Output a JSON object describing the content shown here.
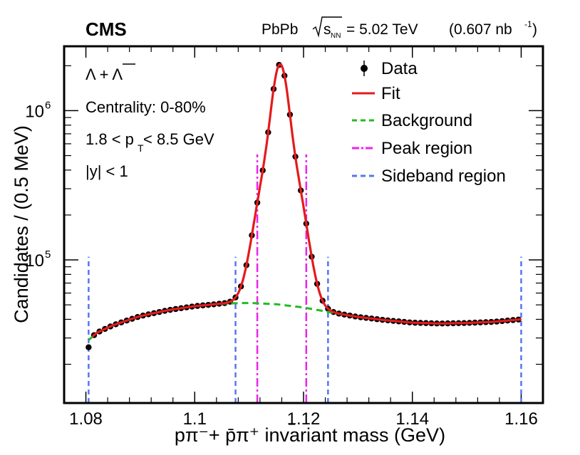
{
  "chart_data": {
    "type": "line",
    "experiment": "CMS",
    "collision": "PbPb",
    "energy_label": "= 5.02 TeV",
    "lumi_label": "(0.607 nb",
    "lumi_exp": "-1",
    "lumi_close": ")",
    "energy_symbol": "s",
    "energy_sub": "NN",
    "xlabel": "pπ⁻+ p̄π⁺ invariant mass (GeV)",
    "ylabel": "Candidates / (0.5 MeV)",
    "xlim": [
      1.076,
      1.164
    ],
    "ylim": [
      11000,
      2700000
    ],
    "yscale": "log",
    "x_ticks": [
      1.08,
      1.1,
      1.12,
      1.14,
      1.16
    ],
    "x_tick_labels": [
      "1.08",
      "1.1",
      "1.12",
      "1.14",
      "1.16"
    ],
    "y_ticks": [
      100000,
      1000000
    ],
    "y_tick_bases": [
      "10",
      "10"
    ],
    "y_tick_exps": [
      "5",
      "6"
    ],
    "annotations": {
      "particle": "Λ + Λ",
      "centrality": "Centrality: 0-80%",
      "pt_left": "1.8 < p",
      "pt_sub": "T",
      "pt_right": " < 8.5 GeV",
      "rapidity": "|y| < 1"
    },
    "legend": [
      {
        "key": "data",
        "label": "Data",
        "color": "#000000",
        "style": "marker"
      },
      {
        "key": "fit",
        "label": "Fit",
        "color": "#e41a1c",
        "style": "solid"
      },
      {
        "key": "background",
        "label": "Background",
        "color": "#22bb22",
        "style": "dashed"
      },
      {
        "key": "peak",
        "label": "Peak region",
        "color": "#ee22ee",
        "style": "dashdot"
      },
      {
        "key": "sideband",
        "label": "Sideband region",
        "color": "#5577ee",
        "style": "dashed"
      }
    ],
    "fit_params": {
      "mean": 1.1157,
      "sigma1": 0.0011,
      "sigma2": 0.0026,
      "amp1": 1300000,
      "amp2": 700000
    },
    "background": {
      "x": [
        1.0805,
        1.082,
        1.085,
        1.09,
        1.095,
        1.1,
        1.105,
        1.11,
        1.115,
        1.12,
        1.125,
        1.13,
        1.135,
        1.14,
        1.145,
        1.15,
        1.155,
        1.16
      ],
      "y": [
        29000,
        32500,
        36500,
        42000,
        46000,
        49000,
        51000,
        51500,
        50500,
        48000,
        44500,
        41500,
        39500,
        38000,
        37500,
        37800,
        38500,
        40000
      ]
    },
    "data_points": {
      "x_start": 1.0805,
      "x_end": 1.16,
      "step": 0.001,
      "first_y": 26000
    },
    "peak_region": [
      1.1115,
      1.1205
    ],
    "sideband_region": [
      1.0805,
      1.1075,
      1.1245,
      1.16
    ],
    "region_line_top": 510000,
    "sideband_line_top": 105000
  }
}
